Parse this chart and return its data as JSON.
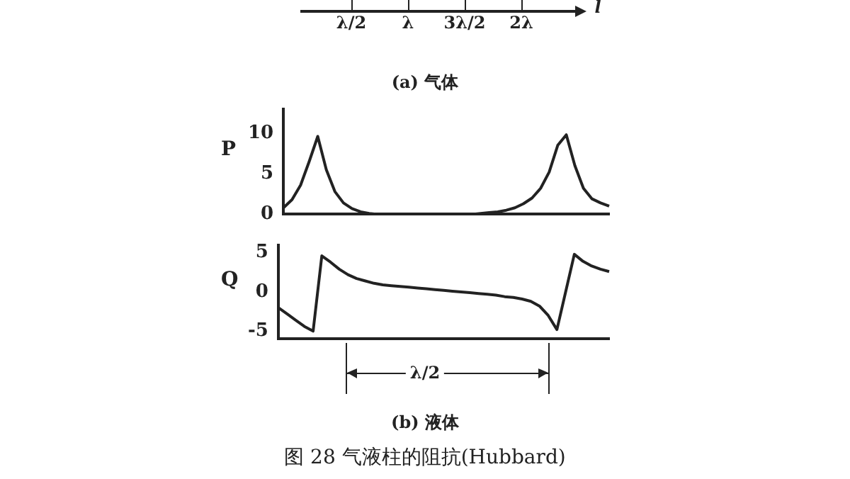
{
  "chart_data": [
    {
      "type": "other",
      "categories": [
        "λ/2",
        "λ",
        "3λ/2",
        "2λ"
      ],
      "xlabel": "l",
      "annotations": [
        "(a) 气体"
      ]
    },
    {
      "type": "line",
      "ylabel": "P",
      "categories": [
        null,
        null,
        null,
        null,
        null,
        null,
        null,
        null,
        null,
        null,
        null,
        null,
        null,
        null,
        null,
        null,
        null,
        null,
        null,
        null,
        null,
        null,
        null,
        null,
        null,
        null,
        null,
        null,
        null,
        null,
        null,
        null,
        null,
        null,
        null,
        null,
        null,
        null,
        null
      ],
      "series": [
        {
          "color": "#222222",
          "values": [
            0.8,
            1.8,
            3.6,
            6.5,
            9.6,
            5.5,
            2.8,
            1.4,
            0.7,
            0.3,
            0.1,
            0,
            0,
            0,
            0,
            0,
            0,
            0,
            0,
            0,
            0,
            0,
            0,
            0.1,
            0.2,
            0.3,
            0.5,
            0.8,
            1.3,
            2,
            3.2,
            5.2,
            8.5,
            9.8,
            6,
            3.2,
            1.9,
            1.4,
            1.0
          ]
        }
      ],
      "ylim": [
        0,
        13
      ],
      "yticks": [
        0,
        5,
        10
      ],
      "grid": false,
      "tick_labels": "y",
      "marker": "none"
    },
    {
      "type": "line",
      "ylabel": "Q",
      "categories": [
        null,
        null,
        null,
        null,
        null,
        null,
        null,
        null,
        null,
        null,
        null,
        null,
        null,
        null,
        null,
        null,
        null,
        null,
        null,
        null,
        null,
        null,
        null,
        null,
        null,
        null,
        null,
        null,
        null,
        null,
        null,
        null,
        null,
        null,
        null,
        null,
        null,
        null,
        null
      ],
      "series": [
        {
          "color": "#222222",
          "values": [
            -2,
            -2.8,
            -3.6,
            -4.4,
            -5,
            4.6,
            3.8,
            2.9,
            2.2,
            1.7,
            1.4,
            1.1,
            0.9,
            0.8,
            0.7,
            0.6,
            0.5,
            0.4,
            0.3,
            0.2,
            0.1,
            0,
            -0.1,
            -0.2,
            -0.3,
            -0.4,
            -0.6,
            -0.7,
            -0.9,
            -1.2,
            -1.8,
            -3,
            -4.8,
            0,
            4.8,
            3.9,
            3.3,
            2.9,
            2.6
          ]
        }
      ],
      "ylim": [
        -6,
        6
      ],
      "yticks": [
        -5,
        0,
        5
      ],
      "grid": false,
      "tick_labels": "y",
      "marker": "none",
      "annotations": [
        "λ/2",
        "(b) 液体",
        "图 28 气液柱的阻抗(Hubbard)"
      ]
    }
  ]
}
